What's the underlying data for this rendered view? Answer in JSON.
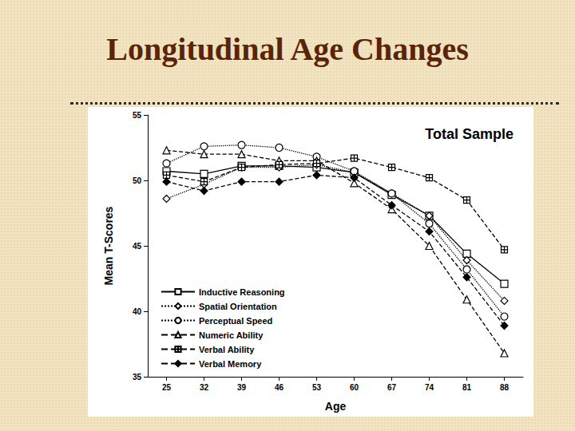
{
  "heading": "Longitudinal Age Changes",
  "chart_data": {
    "type": "line",
    "title": "Total Sample",
    "x_label": "Age",
    "y_label": "Mean T-Scores",
    "categories": [
      "25",
      "32",
      "39",
      "46",
      "53",
      "60",
      "67",
      "74",
      "81",
      "88"
    ],
    "ylim": [
      35,
      55
    ],
    "yticks": [
      35,
      40,
      45,
      50,
      55
    ],
    "grid": false,
    "legend": "lower left",
    "series": [
      {
        "name": "Inductive Reasoning",
        "color": "#000000",
        "marker": "square",
        "line_style": "solid",
        "values": [
          50.7,
          50.5,
          51.1,
          51.1,
          51.0,
          50.6,
          48.9,
          47.3,
          44.4,
          42.1
        ]
      },
      {
        "name": "Spatial Orientation",
        "color": "#000000",
        "marker": "diamond",
        "line_style": "dotted",
        "values": [
          48.6,
          49.7,
          51.0,
          51.0,
          51.2,
          50.6,
          49.0,
          47.3,
          43.9,
          40.8
        ]
      },
      {
        "name": "Perceptual Speed",
        "color": "#000000",
        "marker": "circle",
        "line_style": "dotted",
        "values": [
          51.3,
          52.6,
          52.7,
          52.5,
          51.8,
          50.7,
          49.0,
          46.7,
          43.2,
          39.6
        ]
      },
      {
        "name": "Numeric Ability",
        "color": "#000000",
        "marker": "triangle",
        "line_style": "dashed",
        "values": [
          52.3,
          52.0,
          52.0,
          51.5,
          51.5,
          49.8,
          47.8,
          45.0,
          40.9,
          36.8
        ]
      },
      {
        "name": "Verbal Ability",
        "color": "#000000",
        "marker": "crossed_square",
        "line_style": "dashed",
        "values": [
          50.4,
          49.9,
          51.0,
          51.2,
          51.3,
          51.7,
          51.0,
          50.2,
          48.5,
          44.7
        ]
      },
      {
        "name": "Verbal Memory",
        "color": "#000000",
        "marker": "filled_diamond",
        "line_style": "dashed",
        "values": [
          49.9,
          49.2,
          49.9,
          49.9,
          50.4,
          50.2,
          48.1,
          46.1,
          42.6,
          38.9
        ]
      }
    ]
  }
}
